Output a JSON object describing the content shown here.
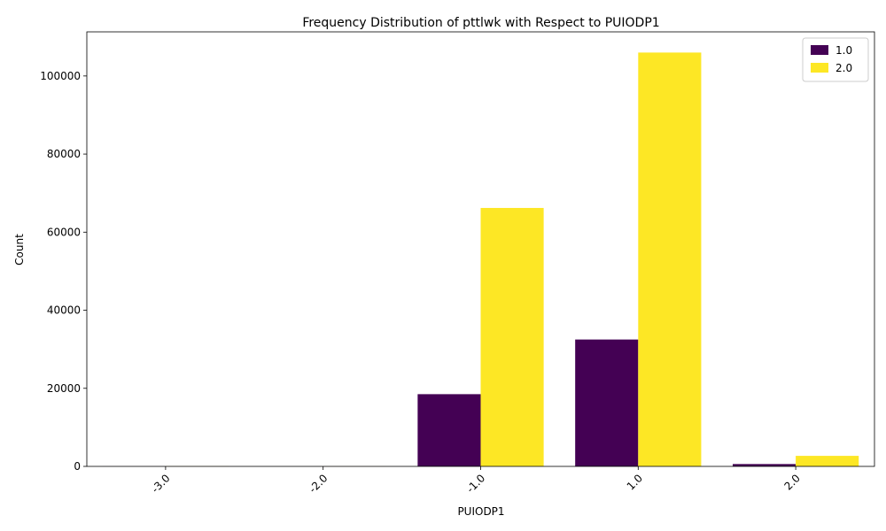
{
  "chart_data": {
    "type": "bar",
    "title": "Frequency Distribution of pttlwk with Respect to PUIODP1",
    "xlabel": "PUIODP1",
    "ylabel": "Count",
    "categories": [
      "-3.0",
      "-2.0",
      "-1.0",
      "1.0",
      "2.0"
    ],
    "series": [
      {
        "name": "1.0",
        "color": "#440154",
        "values": [
          10,
          5,
          18500,
          32500,
          600
        ]
      },
      {
        "name": "2.0",
        "color": "#fde725",
        "values": [
          30,
          20,
          66200,
          106000,
          2700
        ]
      }
    ],
    "ylim": [
      0,
      111300
    ],
    "yticks": [
      0,
      20000,
      40000,
      60000,
      80000,
      100000
    ],
    "legend_position": "top-right",
    "grid": false
  }
}
